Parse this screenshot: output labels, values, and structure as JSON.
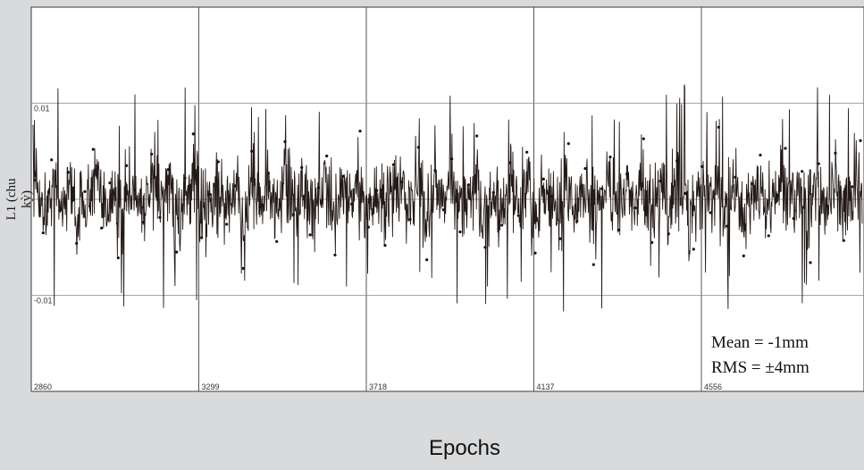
{
  "chart_data": {
    "type": "line",
    "title": "",
    "xlabel": "Epochs",
    "ylabel": "L1 (chu kỳ)",
    "x_tick_labels": [
      "2860",
      "3299",
      "3718",
      "4137",
      "4556"
    ],
    "y_tick_labels": [
      "0.01",
      "-0.01"
    ],
    "ylim": [
      -0.02,
      0.02
    ],
    "grid": true,
    "annotations": {
      "mean": "Mean = -1mm",
      "rms": "RMS = ±4mm"
    },
    "series": [
      {
        "values": [
          0.002,
          -0.0035,
          0.0041,
          -0.0012,
          0.0028,
          -0.0046,
          0.0008,
          0.0052,
          -0.003,
          0.0017,
          -0.0061,
          0.0035,
          0.001,
          -0.0024,
          0.0047,
          -0.0019,
          0.0031,
          -0.0055,
          0.0022,
          0.0068,
          -0.004,
          0.0005,
          0.0039,
          -0.0026,
          0.0014,
          -0.0072,
          0.005,
          -0.0008,
          0.0027,
          -0.0044,
          0.006,
          -0.0016,
          0.0033,
          -0.0037,
          0.0012,
          0.0045,
          -0.0058,
          0.0024,
          -0.0005,
          0.0071,
          -0.0029,
          0.0009,
          -0.0048,
          0.0036,
          0.0018,
          -0.0021,
          0.0054,
          -0.0063,
          0.003,
          -0.0011,
          0.0042,
          -0.0034,
          0.0015,
          0.0066,
          -0.005,
          0.0007,
          -0.0027,
          0.0038,
          -0.0017,
          0.0049,
          -0.0056,
          0.0021,
          0.0003,
          -0.0041,
          0.0058,
          -0.0023,
          0.0032,
          -0.0068,
          0.0011,
          0.0044,
          -0.0032,
          0.0026,
          -0.0009,
          0.0063,
          -0.0045,
          0.0019,
          -0.0036,
          0.004,
          0.0006,
          -0.0052,
          0.0034,
          -0.0014,
          0.0075,
          -0.0028,
          0.0023,
          -0.0059,
          0.0016,
          0.0046,
          -0.0038,
          0.0004,
          0.0053,
          -0.002,
          0.0029,
          -0.0066,
          0.0037,
          -0.0007,
          0.0048,
          -0.0043,
          0.0013,
          0.0061
        ]
      }
    ]
  }
}
